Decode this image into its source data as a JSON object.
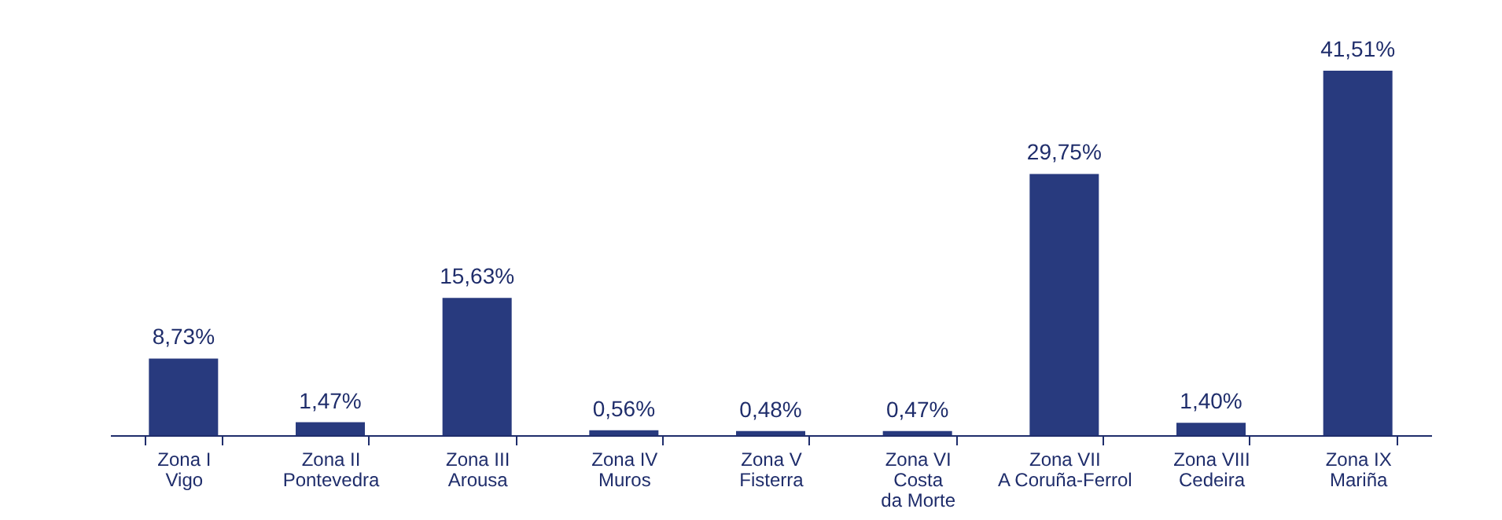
{
  "chart_data": {
    "type": "bar",
    "categories": [
      "Zona I\nVigo",
      "Zona II\nPontevedra",
      "Zona III\nArousa",
      "Zona IV\nMuros",
      "Zona V\nFisterra",
      "Zona VI\nCosta\nda Morte",
      "Zona VII\nA Coruña-Ferrol",
      "Zona VIII\nCedeira",
      "Zona IX\nMariña"
    ],
    "values": [
      8.73,
      1.47,
      15.63,
      0.56,
      0.48,
      0.47,
      29.75,
      1.4,
      41.51
    ],
    "value_labels": [
      "8,73%",
      "1,47%",
      "15,63%",
      "0,56%",
      "0,48%",
      "0,47%",
      "29,75%",
      "1,40%",
      "41,51%"
    ],
    "color": "#283a7e"
  }
}
